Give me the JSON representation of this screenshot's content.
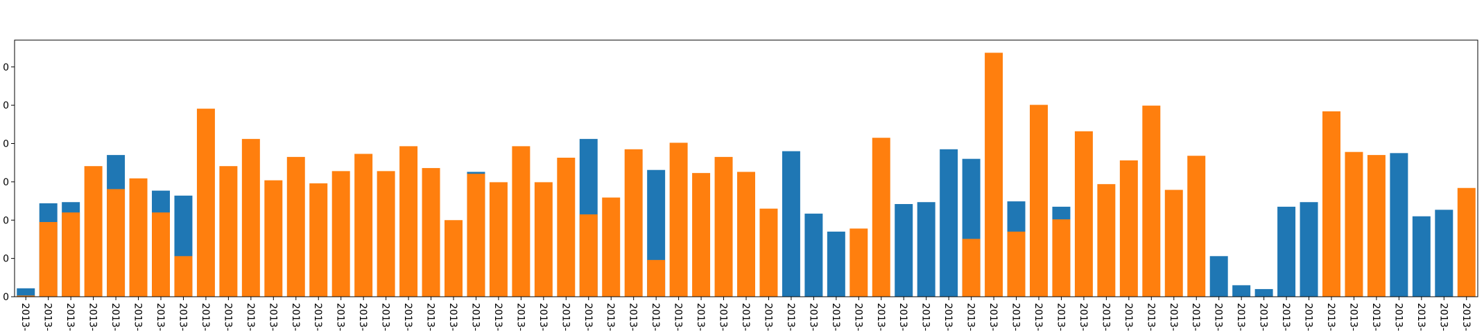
{
  "chart_data": {
    "type": "bar",
    "categories": [
      "2013-",
      "2013-",
      "2013-",
      "2013-",
      "2013-",
      "2013-",
      "2013-",
      "2013-",
      "2013-",
      "2013-",
      "2013-",
      "2013-",
      "2013-",
      "2013-",
      "2013-",
      "2013-",
      "2013-",
      "2013-",
      "2013-",
      "2013-",
      "2013-",
      "2013-",
      "2013-",
      "2013-",
      "2013-",
      "2013-",
      "2013-",
      "2013-",
      "2013-",
      "2013-",
      "2013-",
      "2013-",
      "2013-",
      "2013-",
      "2013-",
      "2013-",
      "2013-",
      "2013-",
      "2013-",
      "2013-",
      "2013-",
      "2013-",
      "2013-",
      "2013-",
      "2013-",
      "2013-",
      "2013-",
      "2013-",
      "2013-",
      "2013-",
      "2013-",
      "2013-",
      "2013-",
      "2013-",
      "2013-",
      "2013-",
      "2013-",
      "2013-",
      "2013-",
      "2013-",
      "2013-",
      "2013-",
      "2013-",
      "2013-",
      "2013-"
    ],
    "series": [
      {
        "color": "#1f77b4",
        "values": [
          2.2,
          24.4,
          24.7,
          null,
          37,
          null,
          27.7,
          26.4,
          null,
          null,
          null,
          null,
          null,
          null,
          null,
          null,
          null,
          null,
          null,
          null,
          32.6,
          null,
          null,
          null,
          null,
          41.2,
          null,
          null,
          33.1,
          null,
          null,
          null,
          null,
          null,
          38,
          21.7,
          17,
          null,
          null,
          24.2,
          24.7,
          38.5,
          36,
          null,
          24.9,
          null,
          23.5,
          null,
          null,
          null,
          null,
          null,
          null,
          10.6,
          3,
          2,
          23.5,
          24.7,
          null,
          null,
          null,
          37.5,
          21,
          22.7,
          null
        ]
      },
      {
        "color": "#ff7f0e",
        "values": [
          0.3,
          19.5,
          22,
          34.1,
          28.1,
          30.9,
          22,
          10.6,
          49.1,
          34.1,
          41.2,
          30.4,
          36.5,
          29.6,
          32.8,
          37.3,
          32.8,
          39.3,
          33.6,
          20,
          32.1,
          29.9,
          39.3,
          29.9,
          36.3,
          21.5,
          25.9,
          38.5,
          9.6,
          40.2,
          32.3,
          36.5,
          32.6,
          23,
          null,
          null,
          null,
          17.8,
          41.5,
          null,
          null,
          null,
          15.1,
          63.7,
          17,
          50.1,
          20.2,
          43.2,
          29.4,
          35.6,
          49.9,
          27.9,
          36.8,
          null,
          null,
          null,
          null,
          null,
          48.4,
          37.8,
          37,
          null,
          null,
          null,
          28.4
        ]
      }
    ],
    "ylim": [
      0,
      67
    ],
    "yticks": [
      {
        "value": 0,
        "label": "0"
      },
      {
        "value": 10,
        "label": "0"
      },
      {
        "value": 20,
        "label": "0"
      },
      {
        "value": 30,
        "label": "0"
      },
      {
        "value": 40,
        "label": "0"
      },
      {
        "value": 50,
        "label": "0"
      },
      {
        "value": 60,
        "label": "0"
      }
    ]
  }
}
